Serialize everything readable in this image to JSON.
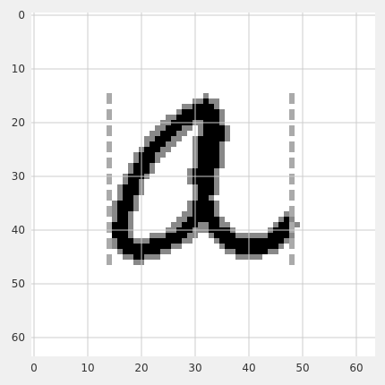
{
  "chart_data": {
    "type": "heatmap",
    "title": "",
    "xlabel": "",
    "ylabel": "",
    "xlim": [
      0,
      63
    ],
    "ylim": [
      63,
      0
    ],
    "grid": true,
    "colors": {
      "figure_background": "#f0f0f0",
      "axes_background": "#ffffff",
      "grid": "#cccccc",
      "ink": "#000000",
      "guide_lines": "#aaaaaa"
    },
    "x_ticks": [
      0,
      10,
      20,
      30,
      40,
      50,
      60
    ],
    "y_ticks": [
      0,
      10,
      20,
      30,
      40,
      50,
      60
    ],
    "image": {
      "description_value": "handwritten letter a",
      "rows": 64,
      "cols": 64,
      "foreground_strokes": [
        {
          "name": "left-bowl",
          "points": [
            [
              32,
              17
            ],
            [
              27,
              20
            ],
            [
              22,
              25
            ],
            [
              19,
              30
            ],
            [
              17,
              35
            ],
            [
              16,
              40
            ],
            [
              17,
              43
            ],
            [
              19,
              44
            ],
            [
              23,
              43
            ],
            [
              27,
              41
            ],
            [
              30,
              38
            ],
            [
              32,
              33
            ],
            [
              33,
              27
            ],
            [
              34,
              22
            ],
            [
              33,
              18
            ],
            [
              32,
              17
            ]
          ]
        },
        {
          "name": "right-stem",
          "points": [
            [
              33,
              18
            ],
            [
              32,
              24
            ],
            [
              31,
              30
            ],
            [
              32,
              36
            ],
            [
              34,
              40
            ],
            [
              38,
              43
            ],
            [
              42,
              43
            ],
            [
              45,
              42
            ],
            [
              47,
              39
            ]
          ]
        }
      ],
      "guide_lines": [
        {
          "name": "left-guide",
          "x": 14,
          "y_start": 15,
          "y_end": 47
        },
        {
          "name": "right-guide",
          "x": 48,
          "y_start": 14,
          "y_end": 47
        }
      ]
    }
  }
}
